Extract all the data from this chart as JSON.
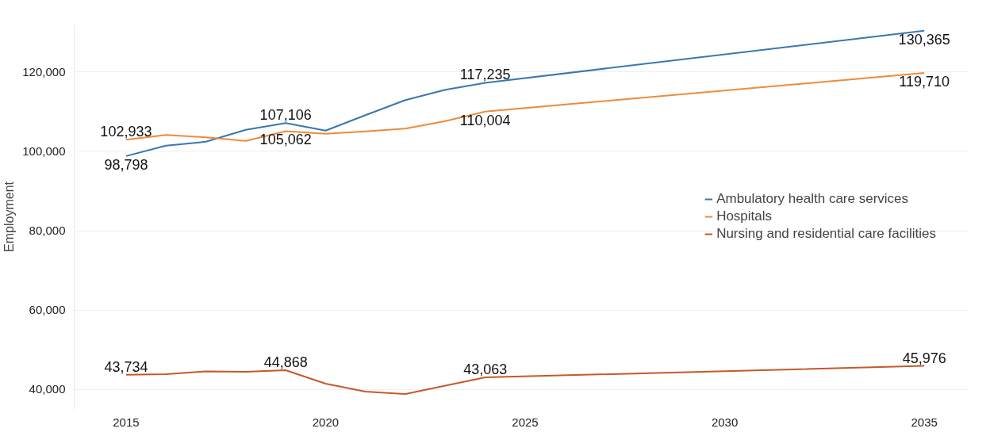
{
  "chart_data": {
    "type": "line",
    "ylabel": "Employment",
    "x": [
      2015,
      2016,
      2017,
      2018,
      2019,
      2020,
      2021,
      2022,
      2023,
      2024,
      2035
    ],
    "series": [
      {
        "name": "Ambulatory health care services",
        "color": "#3a77b0",
        "values": [
          98798,
          101400,
          102400,
          105400,
          107106,
          105200,
          109100,
          112900,
          115500,
          117235,
          130365
        ],
        "value_labels": [
          "98,798",
          null,
          null,
          null,
          "107,106",
          null,
          null,
          null,
          null,
          "117,235",
          "130,365"
        ]
      },
      {
        "name": "Hospitals",
        "color": "#ef8a3a",
        "values": [
          102933,
          104100,
          103500,
          102600,
          105062,
          104400,
          105000,
          105700,
          107600,
          110004,
          119710
        ],
        "value_labels": [
          "102,933",
          null,
          null,
          null,
          "105,062",
          null,
          null,
          null,
          null,
          "110,004",
          "119,710"
        ]
      },
      {
        "name": "Nursing and residential care facilities",
        "color": "#c5592a",
        "values": [
          43734,
          43900,
          44600,
          44500,
          44868,
          41500,
          39500,
          38900,
          41000,
          43063,
          45976
        ],
        "value_labels": [
          "43,734",
          null,
          null,
          null,
          "44,868",
          null,
          null,
          null,
          null,
          "43,063",
          "45,976"
        ]
      }
    ],
    "xlim": [
      2013.7,
      2036.1
    ],
    "xticks": [
      2015,
      2020,
      2025,
      2030,
      2035
    ],
    "ylim": [
      35000,
      132000
    ],
    "yticks": [
      {
        "value": 40000,
        "label": "40,000"
      },
      {
        "value": 60000,
        "label": "60,000"
      },
      {
        "value": 80000,
        "label": "80,000"
      },
      {
        "value": 100000,
        "label": "100,000"
      },
      {
        "value": 120000,
        "label": "120,000"
      }
    ],
    "grid": "y",
    "legend": "right",
    "marker": "none",
    "line_style": "solid"
  }
}
